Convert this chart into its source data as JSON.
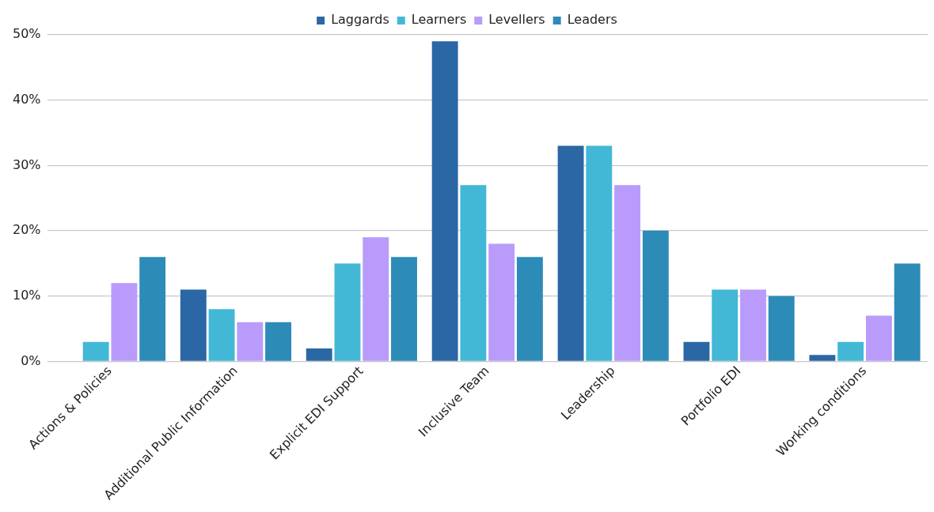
{
  "chart_data": {
    "type": "bar",
    "categories": [
      "Actions & Policies",
      "Additional Public Information",
      "Explicit EDI Support",
      "Inclusive Team",
      "Leadership",
      "Portfolio EDI",
      "Working conditions"
    ],
    "series": [
      {
        "name": "Laggards",
        "color": "#2b67a4",
        "values": [
          null,
          11,
          2,
          49,
          33,
          3,
          1
        ]
      },
      {
        "name": "Learners",
        "color": "#42b8d6",
        "values": [
          3,
          8,
          15,
          27,
          33,
          11,
          3
        ]
      },
      {
        "name": "Levellers",
        "color": "#b99bfc",
        "values": [
          12,
          6,
          19,
          18,
          27,
          11,
          7
        ]
      },
      {
        "name": "Leaders",
        "color": "#2d8bb8",
        "values": [
          16,
          6,
          16,
          16,
          20,
          10,
          15
        ]
      }
    ],
    "ylim": [
      0,
      50
    ],
    "yticks": [
      {
        "value": 0,
        "label": "0%"
      },
      {
        "value": 10,
        "label": "10%"
      },
      {
        "value": 20,
        "label": "20%"
      },
      {
        "value": 30,
        "label": "30%"
      },
      {
        "value": 40,
        "label": "40%"
      },
      {
        "value": 50,
        "label": "50%"
      }
    ],
    "grid": "y",
    "legend": "top"
  }
}
